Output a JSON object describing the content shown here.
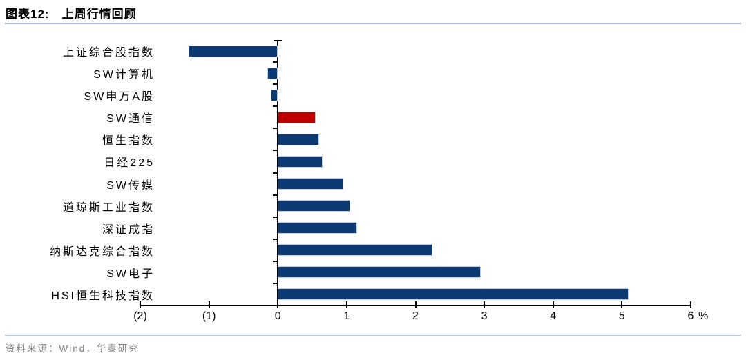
{
  "figure": {
    "title_prefix": "图表12:",
    "title": "上周行情回顾",
    "source": "资料来源：Wind，华泰研究"
  },
  "colors": {
    "bar_default": "#0C3A72",
    "bar_highlight": "#C00000",
    "title_rule": "#A3BBD8",
    "footer_rule": "#BACCE4",
    "source_text": "#828282",
    "axis": "#000000"
  },
  "chart_data": {
    "type": "bar",
    "orientation": "horizontal",
    "title": "上周行情回顾",
    "value_unit": "%",
    "categories": [
      "上证综合股指数",
      "SW计算机",
      "SW申万A股",
      "SW通信",
      "恒生指数",
      "日经225",
      "SW传媒",
      "道琼斯工业指数",
      "深证成指",
      "纳斯达克综合指数",
      "SW电子",
      "HSI恒生科技指数"
    ],
    "values": [
      -1.3,
      -0.15,
      -0.1,
      0.55,
      0.6,
      0.65,
      0.95,
      1.05,
      1.15,
      2.25,
      2.95,
      5.1
    ],
    "highlight_index": 3,
    "highlight_category": "SW通信",
    "xlim": [
      -2,
      6
    ],
    "x_tick_values": [
      -2,
      -1,
      0,
      1,
      2,
      3,
      4,
      5,
      6
    ],
    "x_tick_labels": [
      "(2)",
      "(1)",
      "0",
      "1",
      "2",
      "3",
      "4",
      "5",
      "6"
    ],
    "axis_suffix": "%",
    "negative_label_style": "parentheses",
    "grid": false,
    "legend": null
  }
}
